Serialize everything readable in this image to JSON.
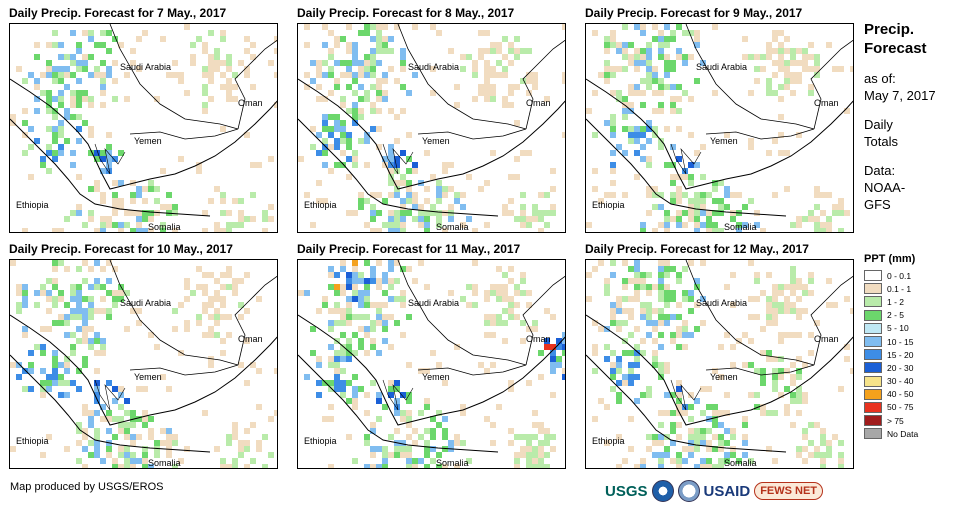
{
  "panels": [
    {
      "title": "Daily Precip. Forecast for 7 May., 2017"
    },
    {
      "title": "Daily Precip. Forecast for 8 May., 2017"
    },
    {
      "title": "Daily Precip. Forecast for 9 May., 2017"
    },
    {
      "title": "Daily Precip. Forecast for 10 May., 2017"
    },
    {
      "title": "Daily Precip. Forecast for 11 May., 2017"
    },
    {
      "title": "Daily Precip. Forecast for 12 May., 2017"
    }
  ],
  "map_labels": {
    "saudi": "Saudi Arabia",
    "oman": "Oman",
    "yemen": "Yemen",
    "ethiopia": "Ethiopia",
    "somalia": "Somalia"
  },
  "sidebar": {
    "title_line1": "Precip.",
    "title_line2": "Forecast",
    "asof_line1": "as of:",
    "asof_line2": "May 7, 2017",
    "daily_line1": "Daily",
    "daily_line2": "Totals",
    "data_line1": "Data:",
    "data_line2": "NOAA-",
    "data_line3": "GFS"
  },
  "legend": {
    "title": "PPT (mm)",
    "items": [
      {
        "label": "0 - 0.1",
        "color": "#ffffff"
      },
      {
        "label": "0.1 - 1",
        "color": "#f1dcc0"
      },
      {
        "label": "1 - 2",
        "color": "#b9ebaa"
      },
      {
        "label": "2 - 5",
        "color": "#6cd76c"
      },
      {
        "label": "5 - 10",
        "color": "#bfe8f4"
      },
      {
        "label": "10 - 15",
        "color": "#80bdf0"
      },
      {
        "label": "15 - 20",
        "color": "#3d8de6"
      },
      {
        "label": "20 - 30",
        "color": "#1a5fd6"
      },
      {
        "label": "30 - 40",
        "color": "#f6e38a"
      },
      {
        "label": "40 - 50",
        "color": "#f4a11c"
      },
      {
        "label": "50 - 75",
        "color": "#e8321f"
      },
      {
        "label": "> 75",
        "color": "#a01c1c"
      },
      {
        "label": "No Data",
        "color": "#a7a7a7"
      }
    ]
  },
  "footer": {
    "credit": "Map produced by USGS/EROS",
    "logo_usgs": "USGS",
    "logo_usaid": "USAID",
    "logo_fews": "FEWS NET"
  }
}
